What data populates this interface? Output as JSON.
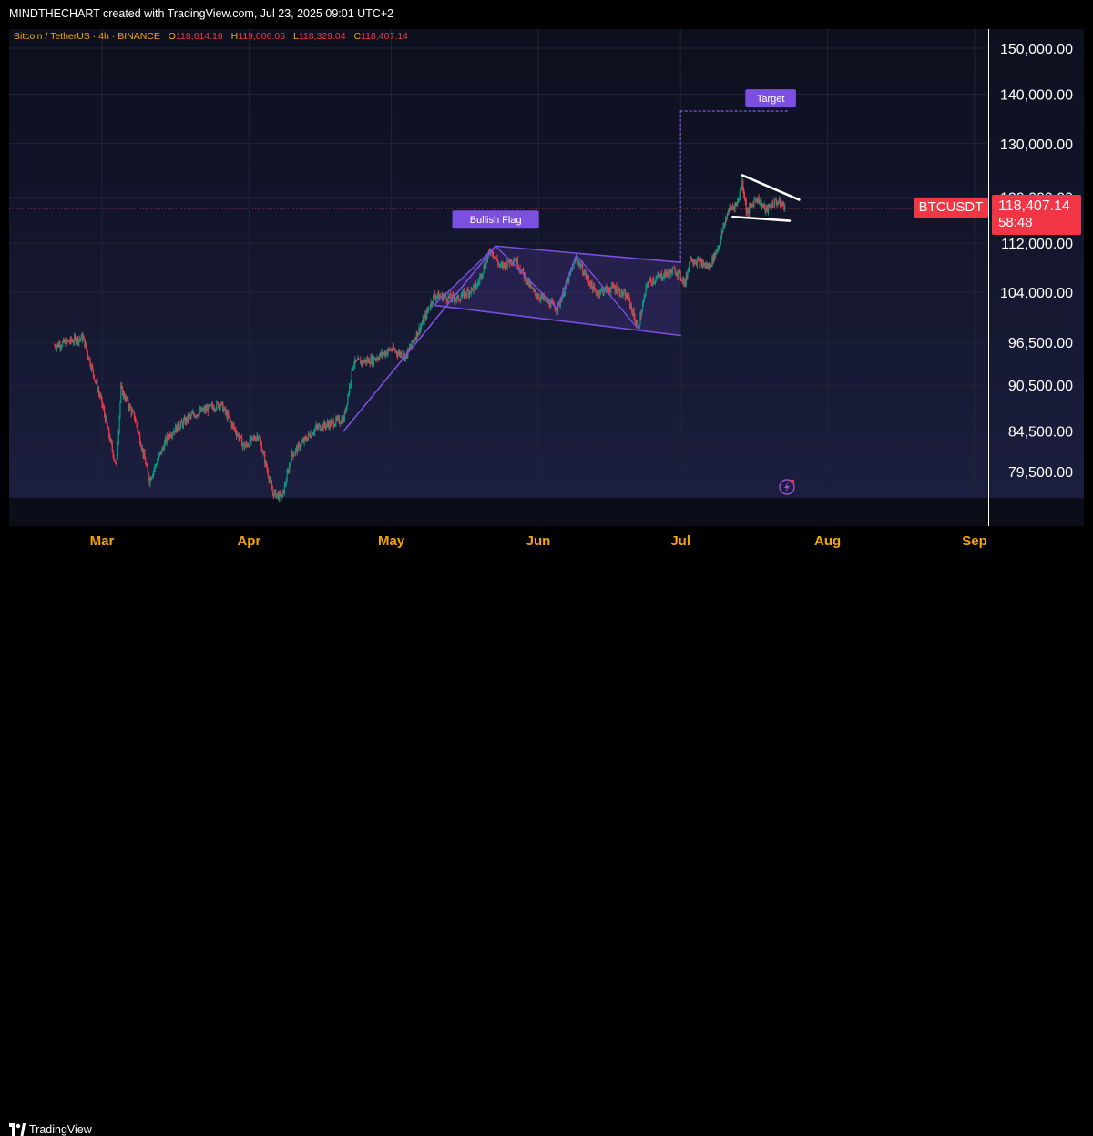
{
  "credit": "MINDTHECHART created with TradingView.com, Jul 23, 2025 09:01 UTC+2",
  "symbol_info": {
    "name": "Bitcoin / TetherUS · 4h · BINANCE",
    "o_label": "O",
    "o_value": "118,614.16",
    "h_label": "H",
    "h_value": "119,006.05",
    "l_label": "L",
    "l_value": "118,329.04",
    "c_label": "C",
    "c_value": "118,407.14"
  },
  "price_tag": {
    "ticker": "BTCUSDT",
    "price": "118,407.14",
    "countdown": "58:48"
  },
  "footer": {
    "brand": "TradingView"
  },
  "colors": {
    "background_top": "#0c0f1c",
    "background_bottom": "#1a1d3d",
    "candle_up": "#089981",
    "candle_down": "#f23645",
    "annotation": "#7b4fe0",
    "label_text": "#f7a600",
    "axis_text": "#ffffff",
    "last_price": "#f23645"
  },
  "chart_data": {
    "type": "candlestick",
    "title": "Bitcoin / TetherUS · 4h · BINANCE",
    "y_axis": {
      "scale": "log",
      "ticks": [
        {
          "value": 79500,
          "label": "79,500.00"
        },
        {
          "value": 84500,
          "label": "84,500.00"
        },
        {
          "value": 90500,
          "label": "90,500.00"
        },
        {
          "value": 96500,
          "label": "96,500.00"
        },
        {
          "value": 104000,
          "label": "104,000.00"
        },
        {
          "value": 112000,
          "label": "112,000.00"
        },
        {
          "value": 120000,
          "label": "120,000.00"
        },
        {
          "value": 130000,
          "label": "130,000.00"
        },
        {
          "value": 140000,
          "label": "140,000.00"
        },
        {
          "value": 150000,
          "label": "150,000.00"
        }
      ]
    },
    "x_axis": {
      "ticks": [
        {
          "date": "2025-03-01",
          "label": "Mar"
        },
        {
          "date": "2025-04-01",
          "label": "Apr"
        },
        {
          "date": "2025-05-01",
          "label": "May"
        },
        {
          "date": "2025-06-01",
          "label": "Jun"
        },
        {
          "date": "2025-07-01",
          "label": "Jul"
        },
        {
          "date": "2025-08-01",
          "label": "Aug"
        },
        {
          "date": "2025-09-01",
          "label": "Sep"
        }
      ]
    },
    "grid": true,
    "last_price": 118407.14,
    "price_path": [
      {
        "date": "2025-02-19",
        "price": 96000
      },
      {
        "date": "2025-02-25",
        "price": 97200
      },
      {
        "date": "2025-03-01",
        "price": 88000
      },
      {
        "date": "2025-03-04",
        "price": 80000
      },
      {
        "date": "2025-03-05",
        "price": 90000
      },
      {
        "date": "2025-03-08",
        "price": 86000
      },
      {
        "date": "2025-03-11",
        "price": 78500
      },
      {
        "date": "2025-03-15",
        "price": 84000
      },
      {
        "date": "2025-03-20",
        "price": 86500
      },
      {
        "date": "2025-03-26",
        "price": 88000
      },
      {
        "date": "2025-03-31",
        "price": 82500
      },
      {
        "date": "2025-04-03",
        "price": 84000
      },
      {
        "date": "2025-04-06",
        "price": 77000
      },
      {
        "date": "2025-04-08",
        "price": 76500
      },
      {
        "date": "2025-04-10",
        "price": 81500
      },
      {
        "date": "2025-04-15",
        "price": 84800
      },
      {
        "date": "2025-04-21",
        "price": 86000
      },
      {
        "date": "2025-04-23",
        "price": 93500
      },
      {
        "date": "2025-04-27",
        "price": 94000
      },
      {
        "date": "2025-05-01",
        "price": 95500
      },
      {
        "date": "2025-05-04",
        "price": 94500
      },
      {
        "date": "2025-05-08",
        "price": 100000
      },
      {
        "date": "2025-05-10",
        "price": 103500
      },
      {
        "date": "2025-05-15",
        "price": 103000
      },
      {
        "date": "2025-05-19",
        "price": 105000
      },
      {
        "date": "2025-05-22",
        "price": 111000
      },
      {
        "date": "2025-05-24",
        "price": 108000
      },
      {
        "date": "2025-05-27",
        "price": 109500
      },
      {
        "date": "2025-05-31",
        "price": 104000
      },
      {
        "date": "2025-06-05",
        "price": 101500
      },
      {
        "date": "2025-06-09",
        "price": 109500
      },
      {
        "date": "2025-06-13",
        "price": 104000
      },
      {
        "date": "2025-06-17",
        "price": 104800
      },
      {
        "date": "2025-06-20",
        "price": 103000
      },
      {
        "date": "2025-06-22",
        "price": 98500
      },
      {
        "date": "2025-06-24",
        "price": 105500
      },
      {
        "date": "2025-06-28",
        "price": 107000
      },
      {
        "date": "2025-06-30",
        "price": 107500
      },
      {
        "date": "2025-07-02",
        "price": 105500
      },
      {
        "date": "2025-07-03",
        "price": 109500
      },
      {
        "date": "2025-07-07",
        "price": 108000
      },
      {
        "date": "2025-07-09",
        "price": 111500
      },
      {
        "date": "2025-07-11",
        "price": 117500
      },
      {
        "date": "2025-07-13",
        "price": 119000
      },
      {
        "date": "2025-07-14",
        "price": 122800
      },
      {
        "date": "2025-07-15",
        "price": 117000
      },
      {
        "date": "2025-07-17",
        "price": 120000
      },
      {
        "date": "2025-07-19",
        "price": 117600
      },
      {
        "date": "2025-07-21",
        "price": 119200
      },
      {
        "date": "2025-07-23",
        "price": 118407.14
      }
    ],
    "annotations": {
      "labels": [
        "Bullish Flag",
        "Target"
      ],
      "flagpole": [
        {
          "date": "2025-04-21",
          "price": 84500
        },
        {
          "date": "2025-05-23",
          "price": 111500
        }
      ],
      "flag_upper": [
        {
          "date": "2025-05-23",
          "price": 111500
        },
        {
          "date": "2025-07-01",
          "price": 108800
        }
      ],
      "flag_lower": [
        {
          "date": "2025-05-10",
          "price": 102000
        },
        {
          "date": "2025-07-01",
          "price": 97500
        }
      ],
      "flag_zigzag": [
        {
          "date": "2025-05-10",
          "price": 102000
        },
        {
          "date": "2025-05-23",
          "price": 111500
        },
        {
          "date": "2025-06-05",
          "price": 101500
        },
        {
          "date": "2025-06-09",
          "price": 110000
        },
        {
          "date": "2025-06-22",
          "price": 98500
        }
      ],
      "target_level": 136500,
      "target_projection": {
        "from_date": "2025-07-01",
        "to_date": "2025-07-24",
        "level": 136500
      },
      "triangle_upper": [
        {
          "date": "2025-07-14",
          "price": 124000
        },
        {
          "date": "2025-07-26",
          "price": 119500
        }
      ],
      "triangle_lower": [
        {
          "date": "2025-07-12",
          "price": 116500
        },
        {
          "date": "2025-07-24",
          "price": 115800
        }
      ]
    }
  }
}
